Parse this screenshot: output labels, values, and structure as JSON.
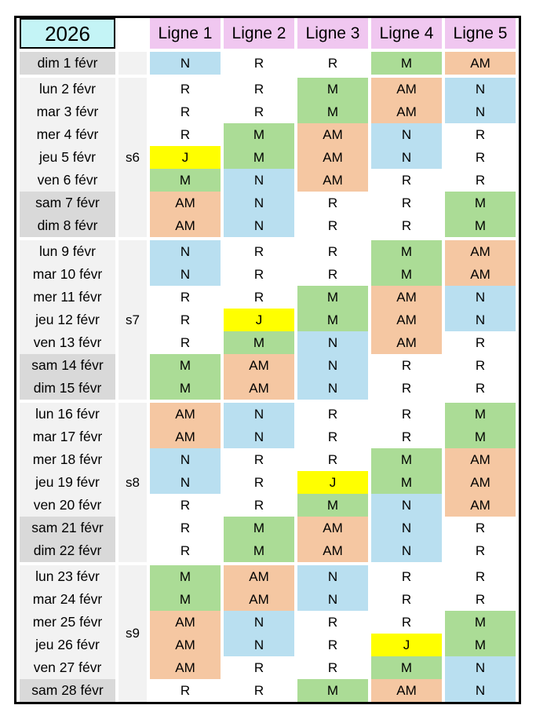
{
  "header": {
    "year": "2026",
    "week_col": "",
    "columns": [
      "Ligne 1",
      "Ligne 2",
      "Ligne 3",
      "Ligne 4",
      "Ligne 5"
    ]
  },
  "shift_codes": [
    "M",
    "AM",
    "N",
    "J",
    "R"
  ],
  "colors": {
    "year_bg": "#C4F4F6",
    "header_bg": "#F0C7F0",
    "weekday_bg": "#F2F2F2",
    "weekend_bg": "#D9D9D9",
    "week_col_bg": "#F2F2F2",
    "codes": {
      "N": "#B9DFF0",
      "R": "#FFFFFF",
      "M": "#ABDC96",
      "AM": "#F5C7A2",
      "J": "#FFFF00"
    }
  },
  "weeks": [
    {
      "label": "",
      "rows": [
        {
          "date": "dim 1 févr",
          "weekend": true,
          "cells": [
            "N",
            "R",
            "R",
            "M",
            "AM"
          ]
        }
      ]
    },
    {
      "label": "s6",
      "rows": [
        {
          "date": "lun 2 févr",
          "weekend": false,
          "cells": [
            "R",
            "R",
            "M",
            "AM",
            "N"
          ]
        },
        {
          "date": "mar 3 févr",
          "weekend": false,
          "cells": [
            "R",
            "R",
            "M",
            "AM",
            "N"
          ]
        },
        {
          "date": "mer 4 févr",
          "weekend": false,
          "cells": [
            "R",
            "M",
            "AM",
            "N",
            "R"
          ]
        },
        {
          "date": "jeu 5 févr",
          "weekend": false,
          "cells": [
            "J",
            "M",
            "AM",
            "N",
            "R"
          ]
        },
        {
          "date": "ven 6 févr",
          "weekend": false,
          "cells": [
            "M",
            "N",
            "AM",
            "R",
            "R"
          ]
        },
        {
          "date": "sam 7 févr",
          "weekend": true,
          "cells": [
            "AM",
            "N",
            "R",
            "R",
            "M"
          ]
        },
        {
          "date": "dim 8 févr",
          "weekend": true,
          "cells": [
            "AM",
            "N",
            "R",
            "R",
            "M"
          ]
        }
      ]
    },
    {
      "label": "s7",
      "rows": [
        {
          "date": "lun 9 févr",
          "weekend": false,
          "cells": [
            "N",
            "R",
            "R",
            "M",
            "AM"
          ]
        },
        {
          "date": "mar 10 févr",
          "weekend": false,
          "cells": [
            "N",
            "R",
            "R",
            "M",
            "AM"
          ]
        },
        {
          "date": "mer 11 févr",
          "weekend": false,
          "cells": [
            "R",
            "R",
            "M",
            "AM",
            "N"
          ]
        },
        {
          "date": "jeu 12 févr",
          "weekend": false,
          "cells": [
            "R",
            "J",
            "M",
            "AM",
            "N"
          ]
        },
        {
          "date": "ven 13 févr",
          "weekend": false,
          "cells": [
            "R",
            "M",
            "N",
            "AM",
            "R"
          ]
        },
        {
          "date": "sam 14 févr",
          "weekend": true,
          "cells": [
            "M",
            "AM",
            "N",
            "R",
            "R"
          ]
        },
        {
          "date": "dim 15 févr",
          "weekend": true,
          "cells": [
            "M",
            "AM",
            "N",
            "R",
            "R"
          ]
        }
      ]
    },
    {
      "label": "s8",
      "rows": [
        {
          "date": "lun 16 févr",
          "weekend": false,
          "cells": [
            "AM",
            "N",
            "R",
            "R",
            "M"
          ]
        },
        {
          "date": "mar 17 févr",
          "weekend": false,
          "cells": [
            "AM",
            "N",
            "R",
            "R",
            "M"
          ]
        },
        {
          "date": "mer 18 févr",
          "weekend": false,
          "cells": [
            "N",
            "R",
            "R",
            "M",
            "AM"
          ]
        },
        {
          "date": "jeu 19 févr",
          "weekend": false,
          "cells": [
            "N",
            "R",
            "J",
            "M",
            "AM"
          ]
        },
        {
          "date": "ven 20 févr",
          "weekend": false,
          "cells": [
            "R",
            "R",
            "M",
            "N",
            "AM"
          ]
        },
        {
          "date": "sam 21 févr",
          "weekend": true,
          "cells": [
            "R",
            "M",
            "AM",
            "N",
            "R"
          ]
        },
        {
          "date": "dim 22 févr",
          "weekend": true,
          "cells": [
            "R",
            "M",
            "AM",
            "N",
            "R"
          ]
        }
      ]
    },
    {
      "label": "s9",
      "rows": [
        {
          "date": "lun 23 févr",
          "weekend": false,
          "cells": [
            "M",
            "AM",
            "N",
            "R",
            "R"
          ]
        },
        {
          "date": "mar 24 févr",
          "weekend": false,
          "cells": [
            "M",
            "AM",
            "N",
            "R",
            "R"
          ]
        },
        {
          "date": "mer 25 févr",
          "weekend": false,
          "cells": [
            "AM",
            "N",
            "R",
            "R",
            "M"
          ]
        },
        {
          "date": "jeu 26 févr",
          "weekend": false,
          "cells": [
            "AM",
            "N",
            "R",
            "J",
            "M"
          ]
        },
        {
          "date": "ven 27 févr",
          "weekend": false,
          "cells": [
            "AM",
            "R",
            "R",
            "M",
            "N"
          ]
        },
        {
          "date": "sam 28 févr",
          "weekend": true,
          "cells": [
            "R",
            "R",
            "M",
            "AM",
            "N"
          ]
        }
      ]
    }
  ]
}
